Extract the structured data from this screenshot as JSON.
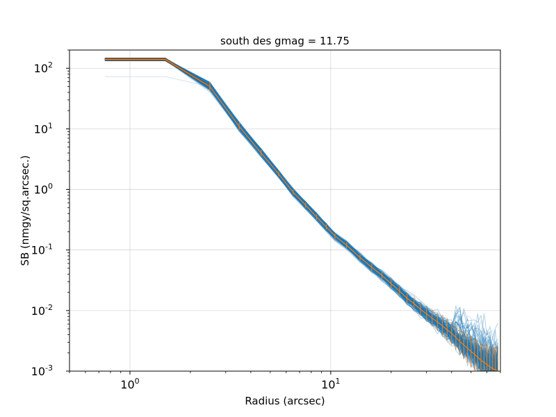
{
  "chart_data": {
    "type": "line",
    "title": "south des gmag = 11.75",
    "xlabel": "Radius (arcsec)",
    "ylabel": "SB (nmgy/sq.arcsec.)",
    "xscale": "log",
    "yscale": "log",
    "xlim": [
      0.5,
      70
    ],
    "ylim": [
      0.001,
      200
    ],
    "grid": true,
    "x_ticks": [
      1,
      10
    ],
    "y_ticks": [
      0.001,
      0.01,
      0.1,
      1,
      10,
      100
    ],
    "colors": {
      "individual_profiles": "#1f77b4",
      "median_profile": "#ff7f0e",
      "envelope": "#555555"
    },
    "median_profile": {
      "x": [
        0.75,
        1.5,
        2.5,
        3.5,
        4.5,
        5.5,
        6.5,
        7.5,
        8.5,
        9.5,
        10.5,
        12,
        14,
        16,
        18,
        20,
        22,
        24,
        26,
        28,
        30,
        32,
        34,
        36,
        38,
        40,
        42,
        44,
        46,
        48,
        50,
        52,
        54,
        56,
        58,
        60,
        62,
        64,
        66,
        68
      ],
      "y": [
        140,
        140,
        50,
        11,
        4.0,
        1.8,
        0.9,
        0.55,
        0.35,
        0.24,
        0.17,
        0.12,
        0.075,
        0.052,
        0.038,
        0.028,
        0.021,
        0.016,
        0.013,
        0.0105,
        0.0088,
        0.0075,
        0.0065,
        0.0056,
        0.0048,
        0.0042,
        0.0036,
        0.0031,
        0.0027,
        0.0024,
        0.0021,
        0.0019,
        0.0017,
        0.0015,
        0.0014,
        0.00128,
        0.00118,
        0.0011,
        0.00105,
        0.001
      ],
      "yerr_factor": [
        1.03,
        1.03,
        1.2,
        1.15,
        1.12,
        1.1,
        1.1,
        1.1,
        1.1,
        1.1,
        1.1,
        1.12,
        1.12,
        1.15,
        1.15,
        1.18,
        1.2,
        1.22,
        1.25,
        1.28,
        1.3,
        1.35,
        1.4,
        1.45,
        1.5,
        1.55,
        1.6,
        1.65,
        1.7,
        1.75,
        1.8,
        1.85,
        1.9,
        1.95,
        2.0,
        2.1,
        2.2,
        2.3,
        2.4,
        2.5
      ]
    }
  }
}
